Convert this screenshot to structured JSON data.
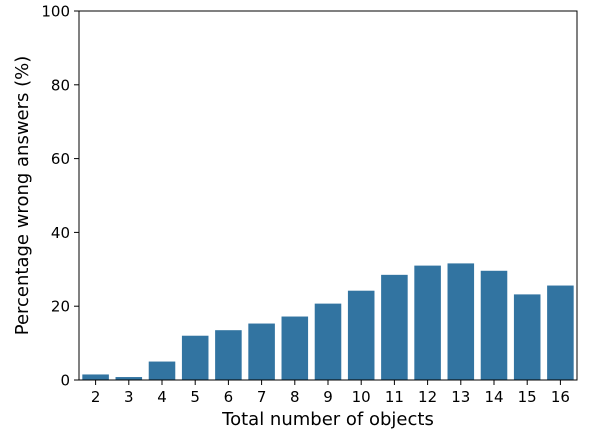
{
  "chart_data": {
    "type": "bar",
    "title": "",
    "xlabel": "Total number of objects",
    "ylabel": "Percentage wrong answers (%)",
    "categories": [
      "2",
      "3",
      "4",
      "5",
      "6",
      "7",
      "8",
      "9",
      "10",
      "11",
      "12",
      "13",
      "14",
      "15",
      "16"
    ],
    "values": [
      1.5,
      0.8,
      5.0,
      12.0,
      13.5,
      15.3,
      17.2,
      20.7,
      24.2,
      28.5,
      31.0,
      31.6,
      29.6,
      23.2,
      25.6
    ],
    "ylim": [
      0,
      100
    ],
    "yticks": [
      0,
      20,
      40,
      60,
      80,
      100
    ],
    "grid": false,
    "legend": "none",
    "colors": {
      "bar": "#3274a1",
      "axis": "#000000"
    }
  }
}
